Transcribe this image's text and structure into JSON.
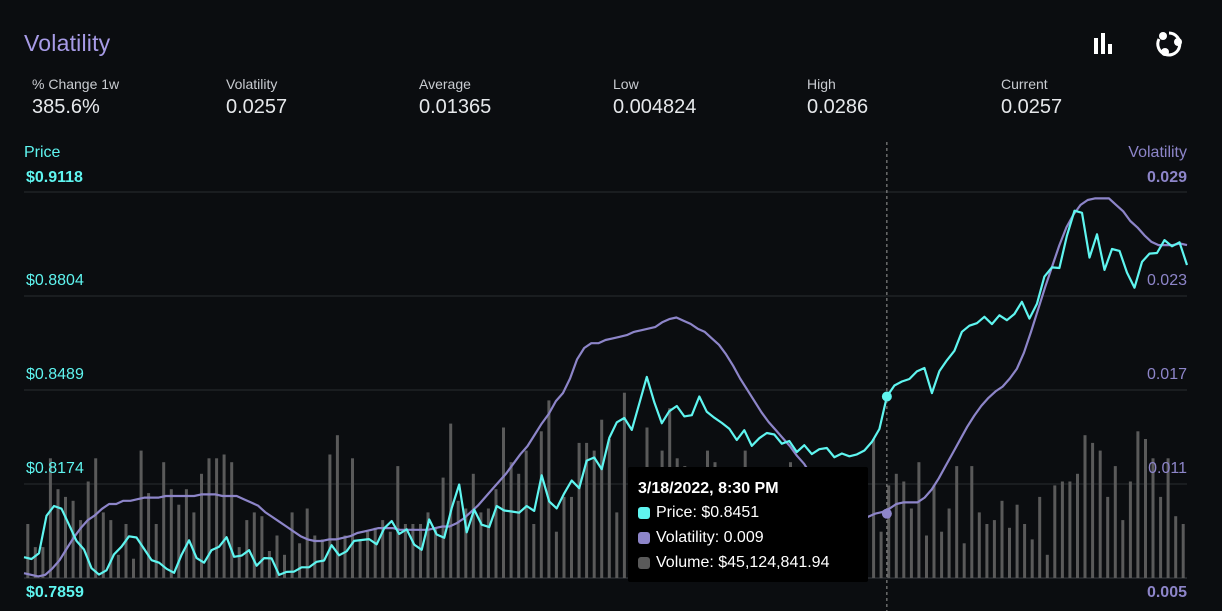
{
  "header": {
    "title": "Volatility"
  },
  "toolbar": {
    "chart_type_icon": "bar-chart-icon",
    "share_icon": "share-icon"
  },
  "stats": [
    {
      "label": "% Change 1w",
      "value": "385.6%"
    },
    {
      "label": "Volatility",
      "value": "0.0257"
    },
    {
      "label": "Average",
      "value": "0.01365"
    },
    {
      "label": "Low",
      "value": "0.004824"
    },
    {
      "label": "High",
      "value": "0.0286"
    },
    {
      "label": "Current",
      "value": "0.0257"
    }
  ],
  "colors": {
    "price": "#5ff5f0",
    "volatility": "#8d85c9",
    "volume": "#5a5a5a",
    "title": "#a79be6",
    "grid": "#2a2d31"
  },
  "tooltip": {
    "title": "3/18/2022, 8:30 PM",
    "price": "Price: $0.8451",
    "volatility": "Volatility: 0.009",
    "volume": "Volume: $45,124,841.94"
  },
  "chart_data": {
    "type": "line",
    "left_axis": {
      "label": "Price",
      "ticks": [
        "$0.9118",
        "$0.8804",
        "$0.8489",
        "$0.8174",
        "$0.7859"
      ],
      "range": [
        0.7859,
        0.9118
      ]
    },
    "right_axis": {
      "label": "Volatility",
      "ticks": [
        "0.029",
        "0.023",
        "0.017",
        "0.011",
        "0.005"
      ],
      "range": [
        0.005,
        0.029
      ]
    },
    "series": [
      {
        "name": "Price",
        "axis": "left",
        "values": [
          0.7927,
          0.7921,
          0.794,
          0.8062,
          0.8094,
          0.8085,
          0.8033,
          0.798,
          0.7952,
          0.7891,
          0.787,
          0.7884,
          0.7936,
          0.7961,
          0.7995,
          0.7991,
          0.7954,
          0.7917,
          0.7909,
          0.7889,
          0.7876,
          0.7935,
          0.7982,
          0.7924,
          0.7909,
          0.795,
          0.7961,
          0.7992,
          0.7928,
          0.7932,
          0.795,
          0.7899,
          0.7924,
          0.7923,
          0.7869,
          0.7879,
          0.788,
          0.7894,
          0.7894,
          0.7912,
          0.7916,
          0.7966,
          0.7933,
          0.7946,
          0.798,
          0.7983,
          0.7986,
          0.7969,
          0.8021,
          0.8045,
          0.8003,
          0.8018,
          0.7968,
          0.7951,
          0.805,
          0.8001,
          0.799,
          0.8087,
          0.8164,
          0.8008,
          0.8082,
          0.8033,
          0.8025,
          0.8094,
          0.8079,
          0.8076,
          0.8072,
          0.8094,
          0.8078,
          0.8194,
          0.8109,
          0.8086,
          0.8135,
          0.8177,
          0.8152,
          0.8242,
          0.8252,
          0.8214,
          0.8316,
          0.8367,
          0.8381,
          0.8342,
          0.8428,
          0.8515,
          0.8432,
          0.8364,
          0.8403,
          0.842,
          0.8386,
          0.839,
          0.8451,
          0.8401,
          0.8382,
          0.8365,
          0.8346,
          0.8309,
          0.8341,
          0.829,
          0.8315,
          0.8332,
          0.8327,
          0.8297,
          0.8306,
          0.827,
          0.8292,
          0.8263,
          0.8279,
          0.8283,
          0.8253,
          0.8265,
          0.8256,
          0.8262,
          0.8275,
          0.8303,
          0.8345,
          0.8451,
          0.8487,
          0.85,
          0.8508,
          0.8533,
          0.8544,
          0.8462,
          0.8534,
          0.8569,
          0.86,
          0.8662,
          0.8682,
          0.869,
          0.8711,
          0.8687,
          0.8716,
          0.87,
          0.872,
          0.876,
          0.8705,
          0.8753,
          0.8842,
          0.8872,
          0.887,
          0.8975,
          0.9057,
          0.905,
          0.8904,
          0.898,
          0.8864,
          0.8932,
          0.8926,
          0.8855,
          0.8806,
          0.889,
          0.8917,
          0.8919,
          0.8961,
          0.8941,
          0.8954,
          0.888
        ]
      },
      {
        "name": "Volatility",
        "axis": "right",
        "values": [
          0.0053,
          0.0052,
          0.0051,
          0.0052,
          0.0056,
          0.0061,
          0.0068,
          0.0075,
          0.0081,
          0.0086,
          0.0089,
          0.0093,
          0.0096,
          0.0096,
          0.0098,
          0.0098,
          0.0099,
          0.01,
          0.01,
          0.01,
          0.0101,
          0.0101,
          0.0101,
          0.0101,
          0.0101,
          0.0102,
          0.0102,
          0.0102,
          0.0101,
          0.0101,
          0.0101,
          0.0099,
          0.0097,
          0.0095,
          0.0091,
          0.0088,
          0.0085,
          0.0082,
          0.0079,
          0.0076,
          0.0074,
          0.0073,
          0.0073,
          0.0074,
          0.0074,
          0.0075,
          0.0076,
          0.0078,
          0.0079,
          0.008,
          0.0081,
          0.0081,
          0.0081,
          0.008,
          0.008,
          0.008,
          0.008,
          0.008,
          0.0081,
          0.0082,
          0.0082,
          0.0084,
          0.0087,
          0.0091,
          0.0095,
          0.01,
          0.0105,
          0.011,
          0.0115,
          0.0121,
          0.0127,
          0.0132,
          0.0139,
          0.0146,
          0.0152,
          0.016,
          0.0165,
          0.0174,
          0.0186,
          0.0193,
          0.0196,
          0.0196,
          0.0198,
          0.0199,
          0.02,
          0.0201,
          0.0203,
          0.0204,
          0.0205,
          0.0206,
          0.0209,
          0.0211,
          0.0212,
          0.021,
          0.0208,
          0.0205,
          0.0203,
          0.0199,
          0.0195,
          0.0189,
          0.0182,
          0.0174,
          0.0167,
          0.016,
          0.0153,
          0.0147,
          0.0142,
          0.0137,
          0.0132,
          0.0126,
          0.0121,
          0.0114,
          0.0106,
          0.0098,
          0.0096,
          0.0094,
          0.0094,
          0.0093,
          0.009,
          0.0088,
          0.009,
          0.0091,
          0.0093,
          0.0096,
          0.0097,
          0.0097,
          0.0097,
          0.01,
          0.0105,
          0.0112,
          0.012,
          0.0128,
          0.0136,
          0.0144,
          0.0151,
          0.0157,
          0.0162,
          0.0166,
          0.0169,
          0.0174,
          0.018,
          0.019,
          0.0203,
          0.0217,
          0.0231,
          0.0244,
          0.0257,
          0.0268,
          0.0276,
          0.0282,
          0.0285,
          0.0286,
          0.0286,
          0.0286,
          0.0282,
          0.0278,
          0.0272,
          0.0268,
          0.0263,
          0.0259,
          0.0257,
          0.0257,
          0.0257,
          0.0258,
          0.0257
        ]
      },
      {
        "name": "Volume",
        "values": [
          14,
          8,
          8,
          31,
          23,
          21,
          20,
          15,
          25,
          31,
          17,
          15,
          6,
          14,
          5,
          33,
          22,
          14,
          30,
          23,
          19,
          23,
          17,
          27,
          31,
          31,
          32,
          30,
          8,
          15,
          17,
          16,
          7,
          11,
          6,
          17,
          9,
          18,
          11,
          10,
          32,
          37,
          11,
          31,
          10,
          12,
          13,
          15,
          12,
          29,
          14,
          14,
          14,
          17,
          13,
          26,
          40,
          20,
          18,
          27,
          17,
          18,
          23,
          39,
          30,
          27,
          33,
          14,
          38,
          46,
          12,
          21,
          21,
          35,
          35,
          33,
          41,
          36,
          17,
          48,
          24,
          20,
          39,
          13,
          33,
          44,
          31,
          29,
          12,
          10,
          33,
          30,
          27,
          25,
          20,
          33,
          18,
          18,
          27,
          22,
          6,
          30,
          24,
          18,
          24,
          25,
          24,
          23,
          15,
          22,
          14,
          16,
          36,
          12,
          24,
          27,
          25,
          18,
          30,
          11,
          24,
          12,
          18,
          29,
          9,
          29,
          17,
          14,
          15,
          20,
          13,
          19,
          14,
          10,
          21,
          6,
          24,
          25,
          25,
          27,
          37,
          35,
          33,
          21,
          29,
          15,
          25,
          38,
          36,
          31,
          21,
          31,
          16,
          14
        ]
      }
    ],
    "vertical_marker": "3/18/2022, 8:30 PM",
    "grid": "horizontal",
    "legend": "none"
  }
}
